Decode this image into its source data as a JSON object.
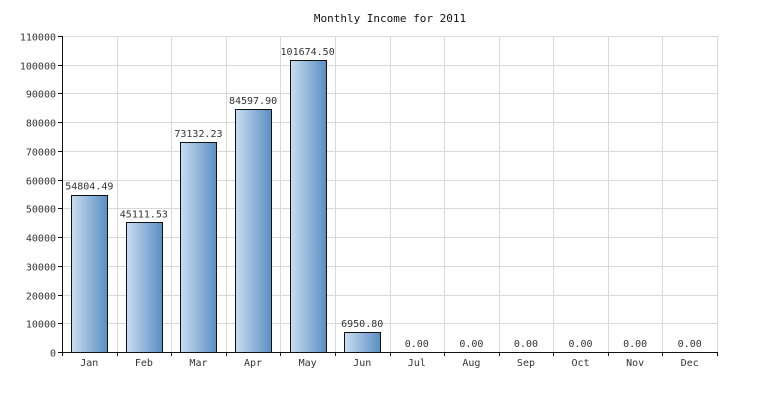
{
  "chart_data": {
    "type": "bar",
    "title": "Monthly Income for 2011",
    "xlabel": "",
    "ylabel": "",
    "categories": [
      "Jan",
      "Feb",
      "Mar",
      "Apr",
      "May",
      "Jun",
      "Jul",
      "Aug",
      "Sep",
      "Oct",
      "Nov",
      "Dec"
    ],
    "values": [
      54804.49,
      45111.53,
      73132.23,
      84597.9,
      101674.5,
      6950.8,
      0.0,
      0.0,
      0.0,
      0.0,
      0.0,
      0.0
    ],
    "value_labels": [
      "54804.49",
      "45111.53",
      "73132.23",
      "84597.90",
      "101674.50",
      "6950.80",
      "0.00",
      "0.00",
      "0.00",
      "0.00",
      "0.00",
      "0.00"
    ],
    "ylim": [
      0,
      110000
    ],
    "yticks": [
      0,
      10000,
      20000,
      30000,
      40000,
      50000,
      60000,
      70000,
      80000,
      90000,
      100000,
      110000
    ],
    "grid": true,
    "legend": "none",
    "colors": {
      "bar_light": "#c9ddf0",
      "bar_dark": "#5b8ec4",
      "bar_stroke": "#111111",
      "grid": "#d9d9d9"
    }
  }
}
